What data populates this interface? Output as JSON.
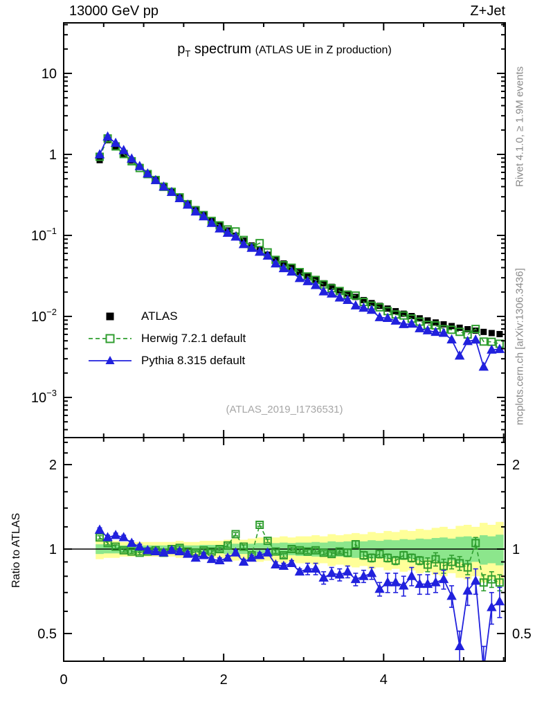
{
  "header": {
    "left": "13000 GeV pp",
    "right": "Z+Jet"
  },
  "title": {
    "p": "p",
    "sub": "T",
    "spectrum": " spectrum",
    "paren": "(ATLAS UE in Z production)"
  },
  "watermark": "(ATLAS_2019_I1736531)",
  "side_text_top": "Rivet 4.1.0, ≥ 1.9M events",
  "side_text_bottom": "mcplots.cern.ch [arXiv:1306.3436]",
  "ratio_ylabel": "Ratio to ATLAS",
  "colors": {
    "atlas": "#000000",
    "herwig": "#2f9e2f",
    "pythia": "#2121dd",
    "band_yellow": "#ffff99",
    "band_green": "#8ce68c",
    "gray_text": "#8a8a8a",
    "watermark_gray": "#a6a6a6"
  },
  "legend": [
    {
      "label": "ATLAS",
      "marker": "filled-square",
      "color_key": "atlas",
      "line": "none"
    },
    {
      "label": "Herwig 7.2.1 default",
      "marker": "open-square",
      "color_key": "herwig",
      "line": "dashed"
    },
    {
      "label": "Pythia 8.315 default",
      "marker": "filled-triangle",
      "color_key": "pythia",
      "line": "solid"
    }
  ],
  "chart_data": {
    "type": "line",
    "title": "p_T spectrum (ATLAS UE in Z production)",
    "xlabel": "",
    "ylabel_main": "",
    "ylabel_ratio": "Ratio to ATLAS",
    "x_range": [
      0,
      5.52
    ],
    "y_main_range_log": [
      0.00032,
      42
    ],
    "y_ratio_range_log": [
      0.4,
      2.49
    ],
    "legend_position": "middle-left",
    "grid": false,
    "x_ticks": [
      {
        "value": 0,
        "label": "0"
      },
      {
        "value": 2,
        "label": "2"
      },
      {
        "value": 4,
        "label": "4"
      }
    ],
    "x_minor_step": 0.5,
    "y_main_ticks": [
      {
        "value": 10,
        "base": "10",
        "exp": ""
      },
      {
        "value": 1,
        "base": "1",
        "exp": ""
      },
      {
        "value": 0.1,
        "base": "10",
        "exp": "−1"
      },
      {
        "value": 0.01,
        "base": "10",
        "exp": "−2"
      },
      {
        "value": 0.001,
        "base": "10",
        "exp": "−3"
      }
    ],
    "y_ratio_ticks": [
      {
        "value": 2,
        "label": "2"
      },
      {
        "value": 1,
        "label": "1"
      },
      {
        "value": 0.5,
        "label": "0.5"
      }
    ],
    "y_ratio_minor": [
      0.4,
      0.5,
      0.6,
      0.7,
      0.8,
      0.9,
      1.0,
      1.2,
      1.4,
      1.6,
      1.8,
      2.0,
      2.2,
      2.4
    ],
    "bin_half_width": 0.05,
    "x": [
      0.45,
      0.55,
      0.65,
      0.75,
      0.85,
      0.95,
      1.05,
      1.15,
      1.25,
      1.35,
      1.45,
      1.55,
      1.65,
      1.75,
      1.85,
      1.95,
      2.05,
      2.15,
      2.25,
      2.35,
      2.45,
      2.55,
      2.65,
      2.75,
      2.85,
      2.95,
      3.05,
      3.15,
      3.25,
      3.35,
      3.45,
      3.55,
      3.65,
      3.75,
      3.85,
      3.95,
      4.05,
      4.15,
      4.25,
      4.35,
      4.45,
      4.55,
      4.65,
      4.75,
      4.85,
      4.95,
      5.05,
      5.15,
      5.25,
      5.35,
      5.45
    ],
    "atlas_values": [
      0.85,
      1.5,
      1.23,
      1.02,
      0.84,
      0.7,
      0.583,
      0.488,
      0.41,
      0.345,
      0.292,
      0.248,
      0.211,
      0.18,
      0.154,
      0.133,
      0.115,
      0.0991,
      0.0861,
      0.0751,
      0.0658,
      0.0577,
      0.0509,
      0.045,
      0.0399,
      0.0356,
      0.0318,
      0.0285,
      0.0256,
      0.0232,
      0.021,
      0.0191,
      0.0174,
      0.0159,
      0.0146,
      0.0135,
      0.0125,
      0.0116,
      0.0108,
      0.0101,
      0.00947,
      0.00892,
      0.00842,
      0.00799,
      0.0076,
      0.00725,
      0.00695,
      0.00667,
      0.00644,
      0.00623,
      0.00605
    ],
    "herwig_ratio": [
      1.1,
      1.05,
      1.02,
      0.99,
      0.98,
      0.97,
      0.98,
      0.99,
      0.97,
      1.0,
      1.01,
      0.98,
      0.97,
      0.99,
      0.98,
      1.0,
      1.03,
      1.13,
      1.02,
      0.95,
      1.22,
      1.07,
      0.98,
      0.95,
      1.0,
      0.99,
      0.98,
      0.99,
      0.97,
      0.96,
      0.98,
      0.97,
      1.04,
      0.95,
      0.93,
      0.96,
      0.93,
      0.91,
      0.95,
      0.93,
      0.91,
      0.88,
      0.92,
      0.87,
      0.9,
      0.89,
      0.86,
      1.05,
      0.76,
      0.78,
      0.76
    ],
    "pythia_ratio": [
      1.17,
      1.1,
      1.12,
      1.1,
      1.05,
      1.02,
      0.99,
      0.98,
      0.97,
      0.99,
      0.98,
      0.96,
      0.93,
      0.95,
      0.92,
      0.91,
      0.93,
      0.97,
      0.9,
      0.93,
      0.95,
      0.97,
      0.88,
      0.87,
      0.89,
      0.83,
      0.85,
      0.85,
      0.79,
      0.82,
      0.81,
      0.83,
      0.78,
      0.8,
      0.82,
      0.72,
      0.76,
      0.76,
      0.74,
      0.8,
      0.75,
      0.75,
      0.76,
      0.78,
      0.68,
      0.45,
      0.71,
      0.77,
      0.37,
      0.62,
      0.65
    ],
    "herwig_ratio_err": [
      0.015,
      0.015,
      0.015,
      0.015,
      0.015,
      0.015,
      0.015,
      0.015,
      0.015,
      0.015,
      0.015,
      0.015,
      0.015,
      0.015,
      0.015,
      0.015,
      0.015,
      0.015,
      0.015,
      0.015,
      0.015,
      0.015,
      0.015,
      0.015,
      0.015,
      0.015,
      0.015,
      0.015,
      0.015,
      0.015,
      0.015,
      0.03,
      0.03,
      0.03,
      0.03,
      0.03,
      0.03,
      0.03,
      0.03,
      0.03,
      0.03,
      0.05,
      0.05,
      0.05,
      0.05,
      0.05,
      0.05,
      0.05,
      0.05,
      0.05,
      0.05
    ],
    "pythia_ratio_err": [
      0.02,
      0.02,
      0.02,
      0.02,
      0.02,
      0.02,
      0.02,
      0.02,
      0.02,
      0.02,
      0.02,
      0.02,
      0.02,
      0.02,
      0.02,
      0.02,
      0.02,
      0.02,
      0.02,
      0.02,
      0.02,
      0.02,
      0.02,
      0.02,
      0.02,
      0.02,
      0.04,
      0.04,
      0.04,
      0.04,
      0.04,
      0.04,
      0.04,
      0.04,
      0.04,
      0.04,
      0.06,
      0.06,
      0.06,
      0.06,
      0.06,
      0.06,
      0.06,
      0.06,
      0.06,
      0.06,
      0.08,
      0.08,
      0.08,
      0.08,
      0.08
    ],
    "band_yellow_halfwidth": [
      0.08,
      0.07,
      0.07,
      0.06,
      0.06,
      0.06,
      0.06,
      0.06,
      0.06,
      0.06,
      0.07,
      0.06,
      0.06,
      0.07,
      0.07,
      0.07,
      0.08,
      0.09,
      0.08,
      0.09,
      0.1,
      0.09,
      0.1,
      0.11,
      0.1,
      0.11,
      0.11,
      0.12,
      0.11,
      0.13,
      0.12,
      0.13,
      0.14,
      0.13,
      0.15,
      0.14,
      0.16,
      0.15,
      0.17,
      0.16,
      0.18,
      0.17,
      0.19,
      0.2,
      0.18,
      0.21,
      0.22,
      0.2,
      0.24,
      0.22,
      0.25
    ],
    "band_green_halfwidth": [
      0.04,
      0.035,
      0.035,
      0.03,
      0.03,
      0.03,
      0.03,
      0.03,
      0.03,
      0.03,
      0.035,
      0.03,
      0.03,
      0.035,
      0.035,
      0.035,
      0.04,
      0.045,
      0.04,
      0.045,
      0.05,
      0.045,
      0.05,
      0.055,
      0.05,
      0.055,
      0.055,
      0.06,
      0.055,
      0.065,
      0.06,
      0.065,
      0.07,
      0.065,
      0.075,
      0.07,
      0.08,
      0.075,
      0.085,
      0.08,
      0.09,
      0.085,
      0.095,
      0.1,
      0.09,
      0.105,
      0.11,
      0.1,
      0.12,
      0.11,
      0.125
    ]
  }
}
